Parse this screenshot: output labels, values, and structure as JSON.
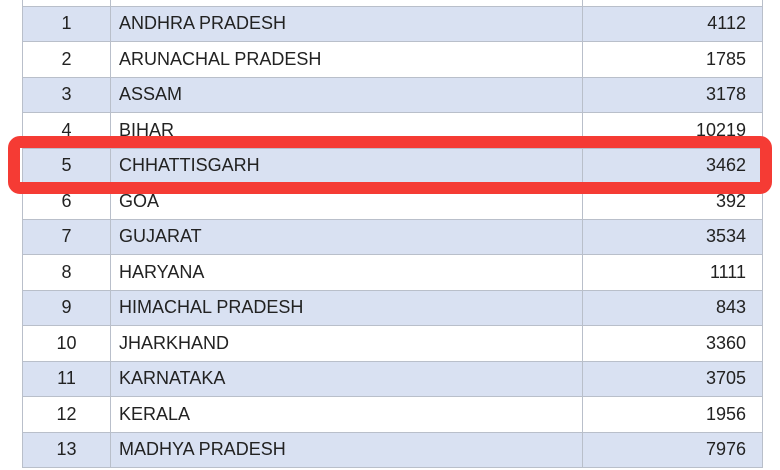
{
  "rows": [
    {
      "no": "",
      "state": "",
      "value": ""
    },
    {
      "no": "1",
      "state": "ANDHRA PRADESH",
      "value": "4112"
    },
    {
      "no": "2",
      "state": "ARUNACHAL PRADESH",
      "value": "1785"
    },
    {
      "no": "3",
      "state": "ASSAM",
      "value": "3178"
    },
    {
      "no": "4",
      "state": "BIHAR",
      "value": "10219"
    },
    {
      "no": "5",
      "state": "CHHATTISGARH",
      "value": "3462"
    },
    {
      "no": "6",
      "state": "GOA",
      "value": "392"
    },
    {
      "no": "7",
      "state": "GUJARAT",
      "value": "3534"
    },
    {
      "no": "8",
      "state": "HARYANA",
      "value": "1111"
    },
    {
      "no": "9",
      "state": "HIMACHAL PRADESH",
      "value": "843"
    },
    {
      "no": "10",
      "state": "JHARKHAND",
      "value": "3360"
    },
    {
      "no": "11",
      "state": "KARNATAKA",
      "value": "3705"
    },
    {
      "no": "12",
      "state": "KERALA",
      "value": "1956"
    },
    {
      "no": "13",
      "state": "MADHYA PRADESH",
      "value": "7976"
    }
  ],
  "highlight": {
    "row_no": "5",
    "color": "#f53b34"
  },
  "colors": {
    "shade": "#d9e1f2",
    "border": "#b9bfca"
  }
}
